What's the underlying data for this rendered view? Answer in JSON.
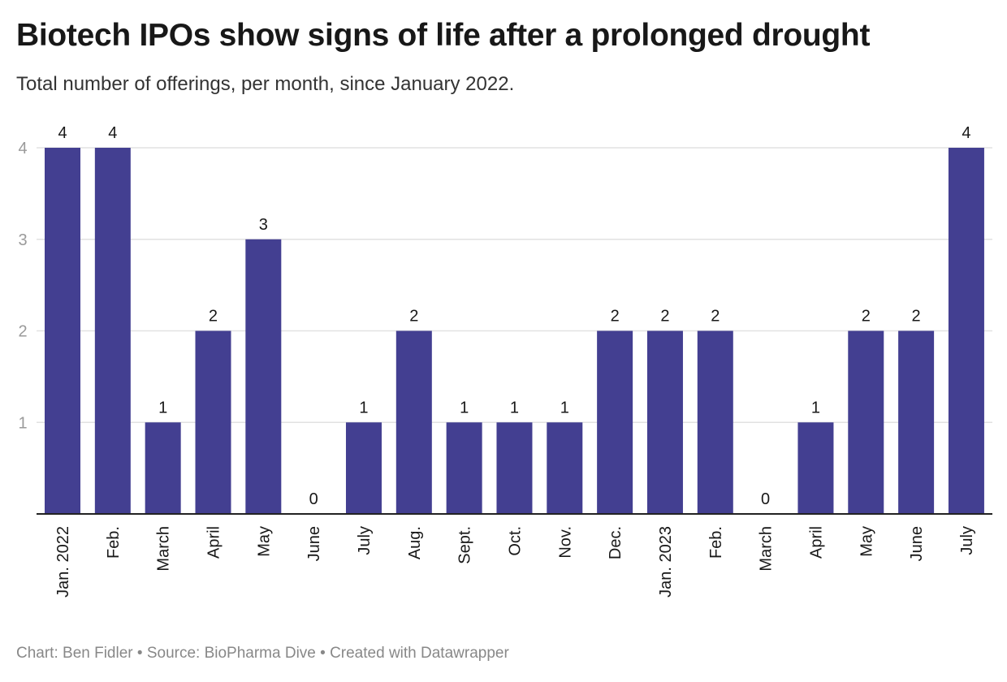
{
  "title": "Biotech IPOs show signs of life after a prolonged drought",
  "subtitle": "Total number of offerings, per month, since January 2022.",
  "footer": "Chart: Ben Fidler • Source: BioPharma Dive • Created with Datawrapper",
  "colors": {
    "bar": "#433f91",
    "grid": "#e2e2e2",
    "axis": "#222222",
    "tick_label": "#9a9a9a"
  },
  "chart_data": {
    "type": "bar",
    "title": "Biotech IPOs show signs of life after a prolonged drought",
    "subtitle": "Total number of offerings, per month, since January 2022.",
    "xlabel": "",
    "ylabel": "",
    "ylim": [
      0,
      4
    ],
    "yticks": [
      1,
      2,
      3,
      4
    ],
    "grid": true,
    "categories": [
      "Jan. 2022",
      "Feb.",
      "March",
      "April",
      "May",
      "June",
      "July",
      "Aug.",
      "Sept.",
      "Oct.",
      "Nov.",
      "Dec.",
      "Jan. 2023",
      "Feb.",
      "March",
      "April",
      "May",
      "June",
      "July"
    ],
    "values": [
      4,
      4,
      1,
      2,
      3,
      0,
      1,
      2,
      1,
      1,
      1,
      2,
      2,
      2,
      0,
      1,
      2,
      2,
      4
    ],
    "data_labels": true
  }
}
